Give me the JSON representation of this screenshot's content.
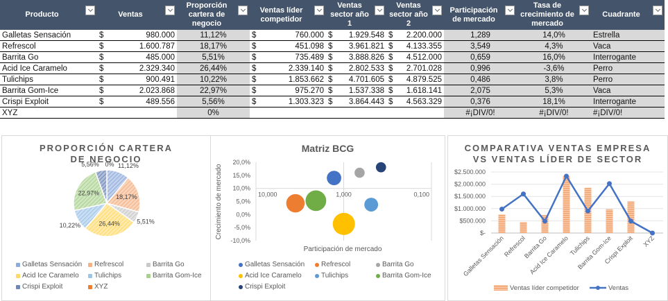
{
  "table": {
    "headers": [
      "Producto",
      "Ventas",
      "Proporción cartera de negocio",
      "Ventas líder competidor",
      "Ventas sector año 1",
      "Ventas sector año 2",
      "Participación de mercado",
      "Tasa de crecimiento de mercado",
      "Cuadrante"
    ],
    "currency": "$",
    "rows": [
      {
        "producto": "Galletas Sensación",
        "ventas": "980.000",
        "proporcion": "11,12%",
        "lider": "760.000",
        "s1": "1.929.548",
        "s2": "2.200.000",
        "part": "1,289",
        "tasa": "14,0%",
        "cuad": "Estrella"
      },
      {
        "producto": "Refrescol",
        "ventas": "1.600.787",
        "proporcion": "18,17%",
        "lider": "451.098",
        "s1": "3.961.821",
        "s2": "4.133.355",
        "part": "3,549",
        "tasa": "4,3%",
        "cuad": "Vaca"
      },
      {
        "producto": "Barrita Go",
        "ventas": "485.000",
        "proporcion": "5,51%",
        "lider": "735.489",
        "s1": "3.888.826",
        "s2": "4.512.000",
        "part": "0,659",
        "tasa": "16,0%",
        "cuad": "Interrogante"
      },
      {
        "producto": "Acid Ice Caramelo",
        "ventas": "2.329.340",
        "proporcion": "26,44%",
        "lider": "2.339.140",
        "s1": "2.802.533",
        "s2": "2.701.028",
        "part": "0,996",
        "tasa": "-3,6%",
        "cuad": "Perro"
      },
      {
        "producto": "Tulichips",
        "ventas": "900.491",
        "proporcion": "10,22%",
        "lider": "1.853.662",
        "s1": "4.701.605",
        "s2": "4.879.525",
        "part": "0,486",
        "tasa": "3,8%",
        "cuad": "Perro"
      },
      {
        "producto": "Barrita Gom-Ice",
        "ventas": "2.023.868",
        "proporcion": "22,97%",
        "lider": "975.270",
        "s1": "1.537.338",
        "s2": "1.618.141",
        "part": "2,075",
        "tasa": "5,3%",
        "cuad": "Vaca"
      },
      {
        "producto": "Crispi Exploit",
        "ventas": "489.556",
        "proporcion": "5,56%",
        "lider": "1.303.323",
        "s1": "3.864.443",
        "s2": "4.563.329",
        "part": "0,376",
        "tasa": "18,1%",
        "cuad": "Interrogante"
      },
      {
        "producto": "XYZ",
        "ventas": "",
        "proporcion": "0%",
        "lider": "",
        "s1": "",
        "s2": "",
        "part": "#¡DIV/0!",
        "tasa": "#¡DIV/0!",
        "cuad": "#¡DIV/0!"
      }
    ]
  },
  "chart_data": [
    {
      "type": "pie",
      "title": "PROPORCIÓN CARTERA DE NEGOCIO",
      "categories": [
        "Galletas Sensación",
        "Refrescol",
        "Barrita Go",
        "Acid Ice Caramelo",
        "Tulichips",
        "Barrita Gom-Ice",
        "Crispi Exploit",
        "XYZ"
      ],
      "values": [
        11.12,
        18.17,
        5.51,
        26.44,
        10.22,
        22.97,
        5.56,
        0
      ],
      "labels": [
        "11,12%",
        "18,17%",
        "5,51%",
        "26,44%",
        "10,22%",
        "22,97%",
        "5,56%",
        "0%"
      ],
      "colors": [
        "#8faadc",
        "#f4b183",
        "#c9c9c9",
        "#ffd966",
        "#9dc3e6",
        "#a9d18e",
        "#6f86b8",
        "#ed7d31"
      ],
      "legend": "bottom"
    },
    {
      "type": "scatter",
      "title": "Matriz BCG",
      "xlabel": "Participación de mercado",
      "ylabel": "Crecimiento de mercado",
      "x_scale": "log-reversed",
      "xlim": [
        10,
        0.1
      ],
      "x_ticks": [
        "10,000",
        "1,000",
        "0,100"
      ],
      "ylim": [
        -0.1,
        0.2
      ],
      "y_ticks": [
        "20,0%",
        "15,0%",
        "10,0%",
        "5,0%",
        "0,0%",
        "-5,0%",
        "-10,0%"
      ],
      "series": [
        {
          "name": "Galletas Sensación",
          "x": 1.289,
          "y": 0.14,
          "size": 980000,
          "color": "#4472c4"
        },
        {
          "name": "Refrescol",
          "x": 3.549,
          "y": 0.043,
          "size": 1600787,
          "color": "#ed7d31"
        },
        {
          "name": "Barrita Go",
          "x": 0.659,
          "y": 0.16,
          "size": 485000,
          "color": "#a5a5a5"
        },
        {
          "name": "Acid Ice Caramelo",
          "x": 0.996,
          "y": -0.036,
          "size": 2329340,
          "color": "#ffc000"
        },
        {
          "name": "Tulichips",
          "x": 0.486,
          "y": 0.038,
          "size": 900491,
          "color": "#5b9bd5"
        },
        {
          "name": "Barrita Gom-Ice",
          "x": 2.075,
          "y": 0.053,
          "size": 2023868,
          "color": "#70ad47"
        },
        {
          "name": "Crispi Exploit",
          "x": 0.376,
          "y": 0.181,
          "size": 489556,
          "color": "#264478"
        }
      ],
      "legend": "bottom"
    },
    {
      "type": "bar",
      "title": "COMPARATIVA VENTAS EMPRESA VS VENTAS LÍDER DE SECTOR",
      "categories": [
        "Galletas Sensación",
        "Refrescol",
        "Barrita Go",
        "Acid Ice Caramelo",
        "Tulichips",
        "Barrita Gom-Ice",
        "Crispi Exploit",
        "XYZ"
      ],
      "ylim": [
        0,
        2500000
      ],
      "y_ticks": [
        "$2.500.000",
        "$2.000.000",
        "$1.500.000",
        "$1.000.000",
        "$500.000",
        "$-"
      ],
      "series": [
        {
          "name": "Ventas líder competidor",
          "type": "bar",
          "color": "#f4b183",
          "values": [
            760000,
            451098,
            735489,
            2339140,
            1853662,
            975270,
            1303323,
            0
          ]
        },
        {
          "name": "Ventas",
          "type": "line",
          "color": "#4472c4",
          "values": [
            980000,
            1600787,
            485000,
            2329340,
            900491,
            2023868,
            489556,
            0
          ]
        }
      ],
      "legend": "bottom"
    }
  ]
}
